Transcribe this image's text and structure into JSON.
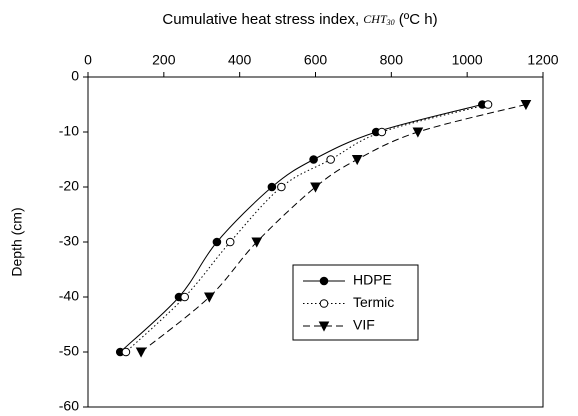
{
  "chart_data": {
    "type": "line",
    "xlabel": [
      "Cumulative heat stress index, ",
      "CHT",
      "30",
      " (ºC h)"
    ],
    "ylabel": "Depth (cm)",
    "depths": [
      -5,
      -10,
      -15,
      -20,
      -30,
      -40,
      -50
    ],
    "series": [
      {
        "name": "HDPE",
        "color": "#000000",
        "marker": "filled-circle",
        "dash": "solid",
        "values": [
          1040,
          760,
          595,
          485,
          340,
          240,
          85
        ]
      },
      {
        "name": "Termic",
        "color": "#000000",
        "marker": "open-circle",
        "dash": "dotted",
        "values": [
          1055,
          775,
          640,
          510,
          375,
          255,
          100
        ]
      },
      {
        "name": "VIF",
        "color": "#000000",
        "marker": "filled-triangle",
        "dash": "dashed",
        "values": [
          1155,
          870,
          710,
          600,
          445,
          320,
          140
        ]
      }
    ],
    "xlim": [
      0,
      1200
    ],
    "xticks": [
      0,
      200,
      400,
      600,
      800,
      1000,
      1200
    ],
    "ylim": [
      -60,
      0
    ],
    "yticks": [
      0,
      -10,
      -20,
      -30,
      -40,
      -50,
      -60
    ],
    "grid": false
  }
}
